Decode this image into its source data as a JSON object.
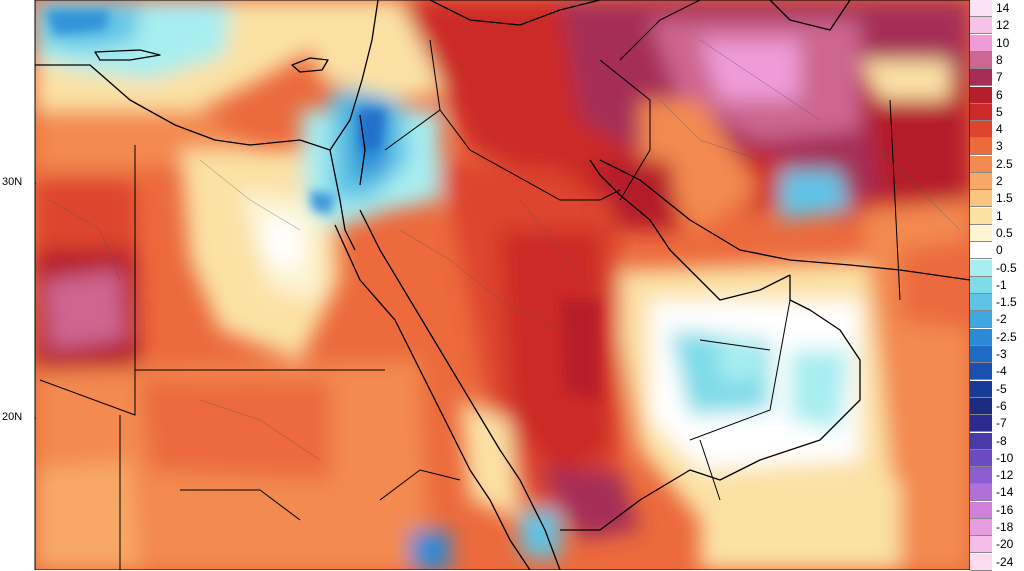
{
  "map": {
    "lat_labels": [
      {
        "text": "30N"
      },
      {
        "text": "20N"
      }
    ]
  },
  "legend": {
    "items": [
      {
        "label": "14",
        "color": "#fbe3f5"
      },
      {
        "label": "12",
        "color": "#f6c2e8"
      },
      {
        "label": "10",
        "color": "#ee9bd7"
      },
      {
        "label": "8",
        "color": "#cd6690"
      },
      {
        "label": "7",
        "color": "#a52d56"
      },
      {
        "label": "6",
        "color": "#b51f2b"
      },
      {
        "label": "5",
        "color": "#cc2a28"
      },
      {
        "label": "4",
        "color": "#dd452e"
      },
      {
        "label": "3",
        "color": "#ec6a3c"
      },
      {
        "label": "2.5",
        "color": "#f38a50"
      },
      {
        "label": "2",
        "color": "#f7a866"
      },
      {
        "label": "1.5",
        "color": "#f9c682"
      },
      {
        "label": "1",
        "color": "#fbe1a4"
      },
      {
        "label": "0.5",
        "color": "#fdf4d4"
      },
      {
        "label": "0",
        "color": "#ffffff"
      },
      {
        "label": "-0.5",
        "color": "#a8eef0"
      },
      {
        "label": "-1",
        "color": "#7edbe8"
      },
      {
        "label": "-1.5",
        "color": "#5ec4e6"
      },
      {
        "label": "-2",
        "color": "#40a8e0"
      },
      {
        "label": "-2.5",
        "color": "#2a8ad6"
      },
      {
        "label": "-3",
        "color": "#1f6cc8"
      },
      {
        "label": "-4",
        "color": "#1a50b0"
      },
      {
        "label": "-5",
        "color": "#183c96"
      },
      {
        "label": "-6",
        "color": "#1c2a80"
      },
      {
        "label": "-7",
        "color": "#2a2a90"
      },
      {
        "label": "-8",
        "color": "#4a3aa8"
      },
      {
        "label": "-10",
        "color": "#6a4cc0"
      },
      {
        "label": "-12",
        "color": "#8c5cd0"
      },
      {
        "label": "-14",
        "color": "#b070d8"
      },
      {
        "label": "-16",
        "color": "#d080dc"
      },
      {
        "label": "-18",
        "color": "#e89ce0"
      },
      {
        "label": "-20",
        "color": "#f4bce8"
      },
      {
        "label": "-24",
        "color": "#fbdcf2"
      }
    ]
  }
}
